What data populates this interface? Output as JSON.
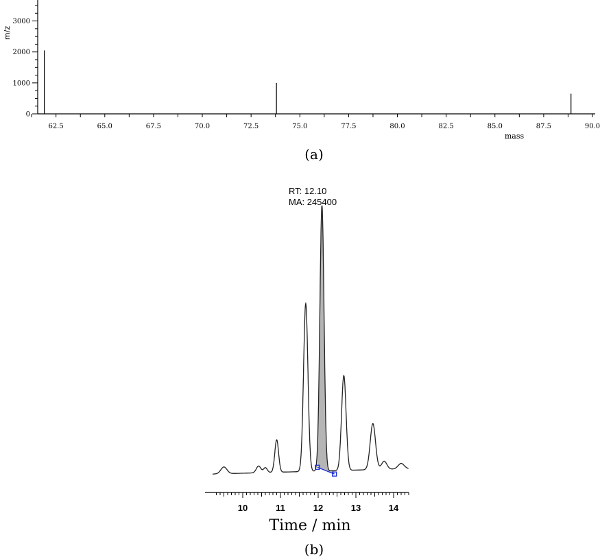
{
  "chart_data": [
    {
      "type": "bar",
      "ylabel": "m/z",
      "xlabel": "mass",
      "xlim": [
        61.0,
        90.0
      ],
      "ylim": [
        0,
        3500
      ],
      "x_ticks": [
        "62.5",
        "65.0",
        "67.5",
        "70.0",
        "72.5",
        "75.0",
        "77.5",
        "80.0",
        "82.5",
        "85.0",
        "87.5",
        "90.0"
      ],
      "y_ticks": [
        "0",
        "1000",
        "2000",
        "3000"
      ],
      "x": [
        61.9,
        73.8,
        88.9
      ],
      "values": [
        2050,
        1000,
        650
      ],
      "panel_label": "(a)"
    },
    {
      "type": "line",
      "xlabel": "Time / min",
      "xlim": [
        9.2,
        14.4
      ],
      "ylim": [
        0,
        100
      ],
      "x_ticks": [
        "10",
        "11",
        "12",
        "13",
        "14"
      ],
      "annotation": {
        "rt": "RT: 12.10",
        "ma": "MA: 245400"
      },
      "shaded_peak": {
        "start": 11.98,
        "end": 12.43
      },
      "baseline_markers": [
        [
          11.98,
          5.5
        ],
        [
          12.43,
          3.0
        ]
      ],
      "panel_label": "(b)"
    }
  ]
}
